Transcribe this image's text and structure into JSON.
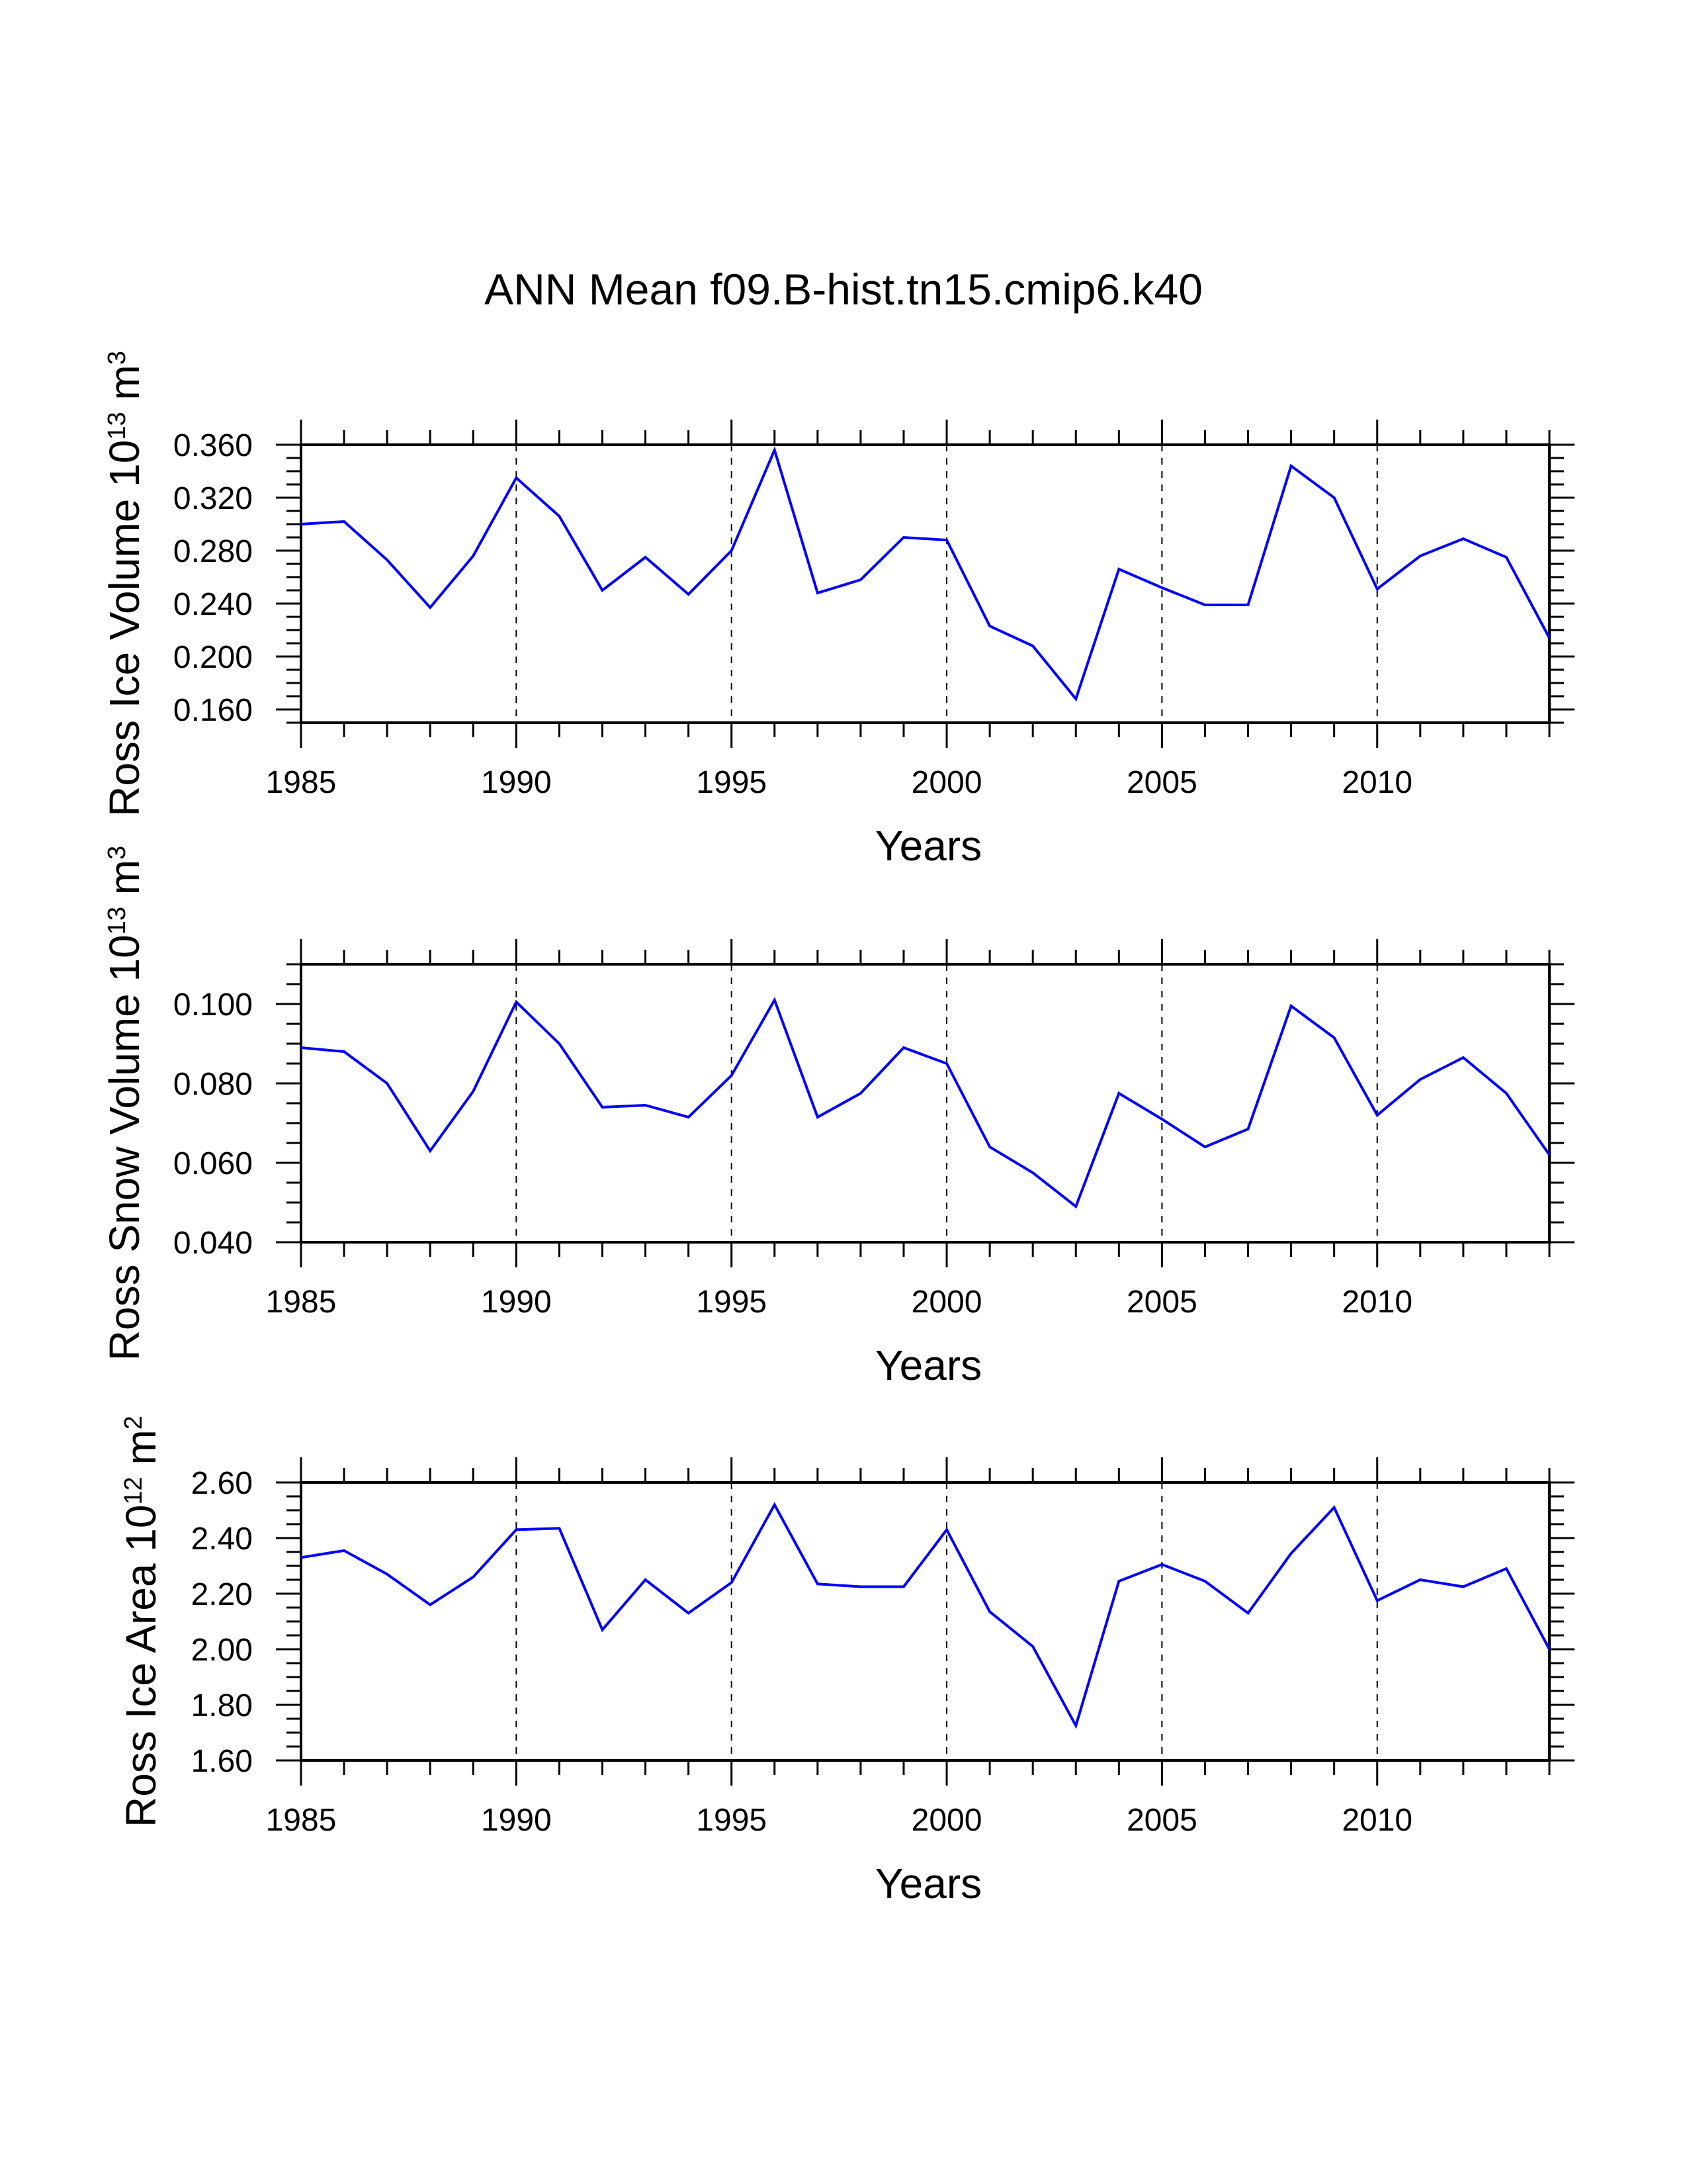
{
  "title": "ANN Mean f09.B-hist.tn15.cmip6.k40",
  "line_color": "#0000ff",
  "chart_data": [
    {
      "type": "line",
      "ylabel_main": "Ross Ice Volume 10",
      "ylabel_exp": "13",
      "ylabel_unit": " m",
      "ylabel_unit_exp": "3",
      "xlabel": "Years",
      "xlim": [
        1985,
        2014
      ],
      "ylim": [
        0.15,
        0.36
      ],
      "yticks": [
        "0.160",
        "0.200",
        "0.240",
        "0.280",
        "0.320",
        "0.360"
      ],
      "xticks": [
        "1985",
        "1990",
        "1995",
        "2000",
        "2005",
        "2010"
      ],
      "x": [
        1985,
        1986,
        1987,
        1988,
        1989,
        1990,
        1991,
        1992,
        1993,
        1994,
        1995,
        1996,
        1997,
        1998,
        1999,
        2000,
        2001,
        2002,
        2003,
        2004,
        2005,
        2006,
        2007,
        2008,
        2009,
        2010,
        2011,
        2012,
        2013,
        2014
      ],
      "series": [
        {
          "name": "Ross Ice Volume",
          "values": [
            0.3,
            0.302,
            0.273,
            0.237,
            0.276,
            0.335,
            0.306,
            0.25,
            0.275,
            0.247,
            0.28,
            0.356,
            0.248,
            0.258,
            0.29,
            0.288,
            0.223,
            0.208,
            0.168,
            0.266,
            0.252,
            0.239,
            0.239,
            0.344,
            0.32,
            0.251,
            0.276,
            0.289,
            0.275,
            0.214
          ]
        }
      ]
    },
    {
      "type": "line",
      "ylabel_main": "Ross Snow Volume 10",
      "ylabel_exp": "13",
      "ylabel_unit": " m",
      "ylabel_unit_exp": "3",
      "xlabel": "Years",
      "xlim": [
        1985,
        2014
      ],
      "ylim": [
        0.04,
        0.11
      ],
      "yticks": [
        "0.040",
        "0.060",
        "0.080",
        "0.100"
      ],
      "xticks": [
        "1985",
        "1990",
        "1995",
        "2000",
        "2005",
        "2010"
      ],
      "x": [
        1985,
        1986,
        1987,
        1988,
        1989,
        1990,
        1991,
        1992,
        1993,
        1994,
        1995,
        1996,
        1997,
        1998,
        1999,
        2000,
        2001,
        2002,
        2003,
        2004,
        2005,
        2006,
        2007,
        2008,
        2009,
        2010,
        2011,
        2012,
        2013,
        2014
      ],
      "series": [
        {
          "name": "Ross Snow Volume",
          "values": [
            0.089,
            0.088,
            0.08,
            0.063,
            0.078,
            0.1005,
            0.09,
            0.074,
            0.0745,
            0.0715,
            0.082,
            0.101,
            0.0715,
            0.0775,
            0.089,
            0.085,
            0.064,
            0.0575,
            0.049,
            0.0775,
            0.071,
            0.064,
            0.0685,
            0.0995,
            0.0915,
            0.072,
            0.081,
            0.0865,
            0.0775,
            0.062
          ]
        }
      ]
    },
    {
      "type": "line",
      "ylabel_main": "Ross Ice Area 10",
      "ylabel_exp": "12",
      "ylabel_unit": " m",
      "ylabel_unit_exp": "2",
      "xlabel": "Years",
      "xlim": [
        1985,
        2014
      ],
      "ylim": [
        1.6,
        2.6
      ],
      "yticks": [
        "1.60",
        "1.80",
        "2.00",
        "2.20",
        "2.40",
        "2.60"
      ],
      "xticks": [
        "1985",
        "1990",
        "1995",
        "2000",
        "2005",
        "2010"
      ],
      "x": [
        1985,
        1986,
        1987,
        1988,
        1989,
        1990,
        1991,
        1992,
        1993,
        1994,
        1995,
        1996,
        1997,
        1998,
        1999,
        2000,
        2001,
        2002,
        2003,
        2004,
        2005,
        2006,
        2007,
        2008,
        2009,
        2010,
        2011,
        2012,
        2013,
        2014
      ],
      "series": [
        {
          "name": "Ross Ice Area",
          "values": [
            2.33,
            2.355,
            2.27,
            2.16,
            2.26,
            2.43,
            2.435,
            2.07,
            2.25,
            2.13,
            2.24,
            2.52,
            2.235,
            2.225,
            2.225,
            2.43,
            2.135,
            2.01,
            1.725,
            2.245,
            2.305,
            2.245,
            2.13,
            2.345,
            2.51,
            2.175,
            2.25,
            2.225,
            2.29,
            2.0
          ]
        }
      ]
    }
  ]
}
